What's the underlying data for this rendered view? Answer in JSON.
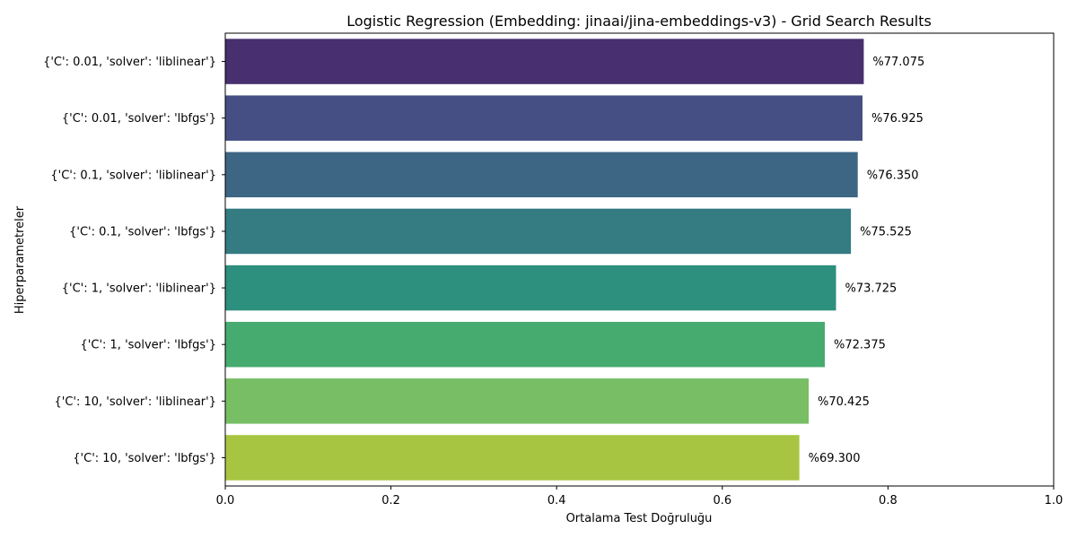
{
  "chart_data": {
    "type": "bar",
    "orientation": "horizontal",
    "title": "Logistic Regression (Embedding: jinaai/jina-embeddings-v3) - Grid Search Results",
    "xlabel": "Ortalama Test Doğruluğu",
    "ylabel": "Hiperparametreler",
    "xlim": [
      0.0,
      1.0
    ],
    "xticks": [
      "0.0",
      "0.2",
      "0.4",
      "0.6",
      "0.8",
      "1.0"
    ],
    "grid": false,
    "categories": [
      "{'C': 0.01, 'solver': 'liblinear'}",
      "{'C': 0.01, 'solver': 'lbfgs'}",
      "{'C': 0.1, 'solver': 'liblinear'}",
      "{'C': 0.1, 'solver': 'lbfgs'}",
      "{'C': 1, 'solver': 'liblinear'}",
      "{'C': 1, 'solver': 'lbfgs'}",
      "{'C': 10, 'solver': 'liblinear'}",
      "{'C': 10, 'solver': 'lbfgs'}"
    ],
    "values": [
      0.77075,
      0.76925,
      0.7635,
      0.75525,
      0.73725,
      0.72375,
      0.70425,
      0.693
    ],
    "value_labels": [
      "%77.075",
      "%76.925",
      "%76.350",
      "%75.525",
      "%73.725",
      "%72.375",
      "%70.425",
      "%69.300"
    ],
    "colors": [
      "#482f6f",
      "#464f84",
      "#3d6684",
      "#347b82",
      "#2d8f7d",
      "#46ab6f",
      "#77be64",
      "#a8c541"
    ]
  }
}
